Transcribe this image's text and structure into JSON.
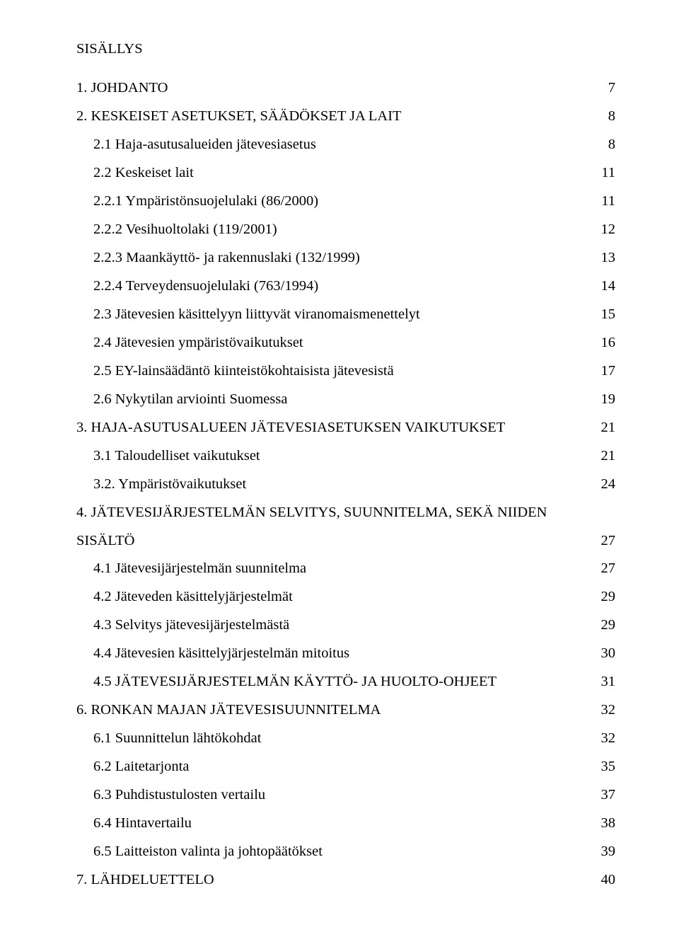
{
  "title": "SISÄLLYS",
  "entries": [
    {
      "text": "1. JOHDANTO",
      "page": "7",
      "indent": 0
    },
    {
      "text": "2. KESKEISET ASETUKSET, SÄÄDÖKSET JA LAIT",
      "page": "8",
      "indent": 0
    },
    {
      "text": "2.1 Haja-asutusalueiden jätevesiasetus",
      "page": "8",
      "indent": 1
    },
    {
      "text": "2.2 Keskeiset lait",
      "page": "11",
      "indent": 1
    },
    {
      "text": "2.2.1 Ympäristönsuojelulaki (86/2000)",
      "page": "11",
      "indent": 1
    },
    {
      "text": "2.2.2 Vesihuoltolaki (119/2001)",
      "page": "12",
      "indent": 1
    },
    {
      "text": "2.2.3 Maankäyttö- ja rakennuslaki (132/1999)",
      "page": "13",
      "indent": 1
    },
    {
      "text": "2.2.4 Terveydensuojelulaki (763/1994)",
      "page": "14",
      "indent": 1
    },
    {
      "text": "2.3 Jätevesien käsittelyyn liittyvät viranomaismenettelyt",
      "page": "15",
      "indent": 1
    },
    {
      "text": "2.4 Jätevesien ympäristövaikutukset",
      "page": "16",
      "indent": 1
    },
    {
      "text": "2.5 EY-lainsäädäntö kiinteistökohtaisista jätevesistä",
      "page": "17",
      "indent": 1
    },
    {
      "text": "2.6 Nykytilan arviointi Suomessa",
      "page": "19",
      "indent": 1
    },
    {
      "text": "3. HAJA-ASUTUSALUEEN JÄTEVESIASETUKSEN VAIKUTUKSET",
      "page": "21",
      "indent": 0
    },
    {
      "text": "3.1 Taloudelliset vaikutukset",
      "page": "21",
      "indent": 1
    },
    {
      "text": "3.2. Ympäristövaikutukset",
      "page": "24",
      "indent": 1
    },
    {
      "text": "4. JÄTEVESIJÄRJESTELMÄN SELVITYS, SUUNNITELMA, SEKÄ NIIDEN",
      "text2": "SISÄLTÖ",
      "page": "27",
      "indent": 0,
      "multiline": true
    },
    {
      "text": "4.1 Jätevesijärjestelmän suunnitelma",
      "page": "27",
      "indent": 1
    },
    {
      "text": "4.2 Jäteveden käsittelyjärjestelmät",
      "page": "29",
      "indent": 1
    },
    {
      "text": "4.3 Selvitys jätevesijärjestelmästä",
      "page": "29",
      "indent": 1
    },
    {
      "text": "4.4 Jätevesien käsittelyjärjestelmän mitoitus",
      "page": "30",
      "indent": 1
    },
    {
      "text": "4.5 JÄTEVESIJÄRJESTELMÄN KÄYTTÖ- JA HUOLTO-OHJEET",
      "page": "31",
      "indent": 1
    },
    {
      "text": "6. RONKAN MAJAN JÄTEVESISUUNNITELMA",
      "page": "32",
      "indent": 0
    },
    {
      "text": "6.1 Suunnittelun lähtökohdat",
      "page": "32",
      "indent": 1
    },
    {
      "text": "6.2 Laitetarjonta",
      "page": "35",
      "indent": 1
    },
    {
      "text": "6.3 Puhdistustulosten vertailu",
      "page": "37",
      "indent": 1
    },
    {
      "text": "6.4 Hintavertailu",
      "page": "38",
      "indent": 1
    },
    {
      "text": "6.5 Laitteiston valinta ja johtopäätökset",
      "page": "39",
      "indent": 1
    },
    {
      "text": "7. LÄHDELUETTELO",
      "page": "40",
      "indent": 0
    }
  ]
}
